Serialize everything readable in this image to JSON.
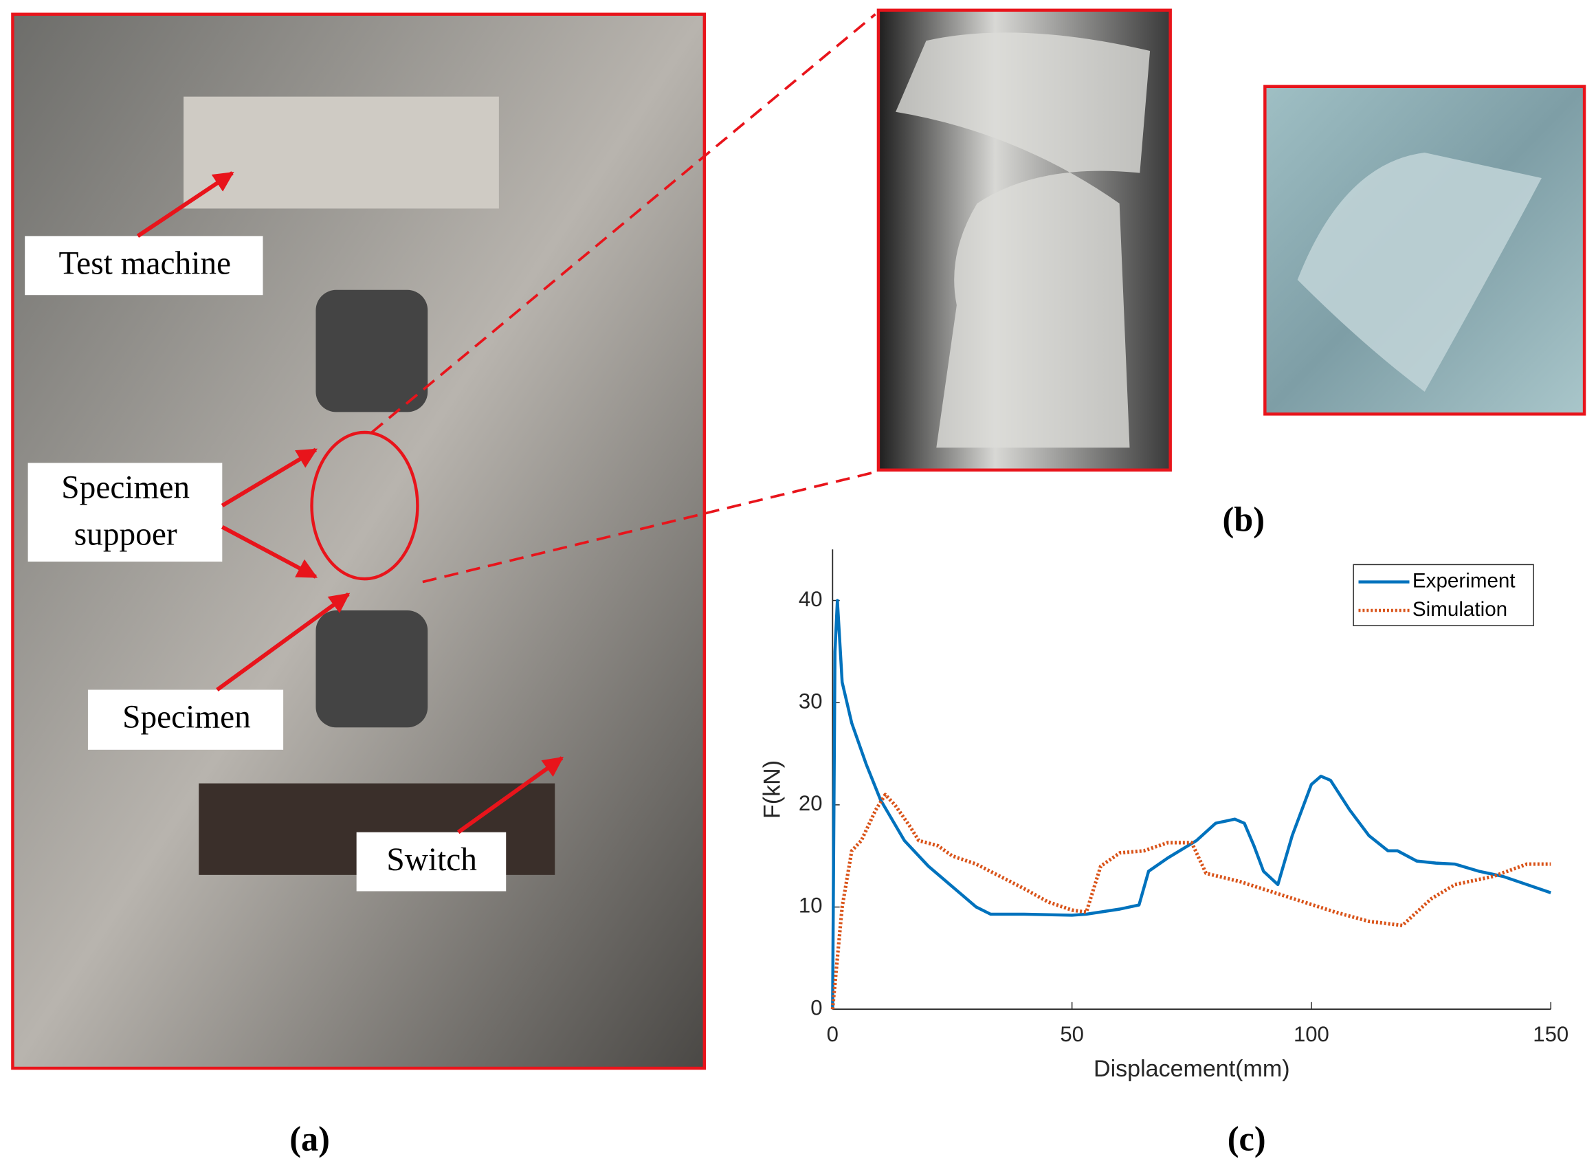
{
  "annotations": {
    "test_machine": "Test machine",
    "specimen_support": [
      "Specimen",
      "suppoer"
    ],
    "specimen": "Specimen",
    "switch": "Switch"
  },
  "panel_labels": {
    "a": "(a)",
    "b": "(b)",
    "c": "(c)"
  },
  "chart_data": {
    "type": "line",
    "x_label": "Displacement(mm)",
    "y_label": "F(kN)",
    "xlim": [
      0,
      150
    ],
    "ylim": [
      0,
      45
    ],
    "xticks": [
      0,
      50,
      100,
      150
    ],
    "yticks": [
      0,
      10,
      20,
      30,
      40
    ],
    "legend": "upper right",
    "grid": false,
    "series": [
      {
        "name": "Experiment",
        "color": "#0072bd",
        "style": "solid",
        "x": [
          0,
          0.5,
          1,
          2,
          4,
          7,
          10,
          15,
          20,
          25,
          30,
          33,
          40,
          50,
          53,
          60,
          64,
          66,
          70,
          76,
          80,
          84,
          86,
          88,
          90,
          93,
          96,
          100,
          102,
          104,
          108,
          112,
          116,
          118,
          122,
          126,
          130,
          135,
          140,
          145,
          150
        ],
        "values": [
          0,
          35,
          40,
          32,
          28,
          24,
          20.5,
          16.5,
          14,
          12,
          10,
          9.3,
          9.3,
          9.2,
          9.3,
          9.8,
          10.2,
          13.5,
          14.8,
          16.5,
          18.2,
          18.6,
          18.2,
          16,
          13.5,
          12.2,
          17,
          22,
          22.8,
          22.4,
          19.5,
          17,
          15.5,
          15.5,
          14.5,
          14.3,
          14.2,
          13.5,
          13,
          12.2,
          11.4
        ]
      },
      {
        "name": "Simulation",
        "color": "#d95319",
        "style": "dotted",
        "x": [
          0,
          2,
          4,
          6,
          9,
          11,
          13,
          16,
          18,
          22,
          25,
          30,
          35,
          40,
          45,
          50,
          53,
          56,
          60,
          65,
          70,
          75,
          78,
          85,
          95,
          105,
          112,
          119,
          125,
          130,
          138,
          145,
          150
        ],
        "values": [
          0,
          10,
          15.5,
          16.5,
          19.5,
          21,
          20,
          18,
          16.5,
          16,
          15,
          14.2,
          13,
          11.8,
          10.5,
          9.7,
          9.5,
          14,
          15.3,
          15.5,
          16.3,
          16.3,
          13.3,
          12.5,
          11,
          9.5,
          8.6,
          8.2,
          10.8,
          12.2,
          13,
          14.2,
          14.2
        ]
      }
    ]
  }
}
